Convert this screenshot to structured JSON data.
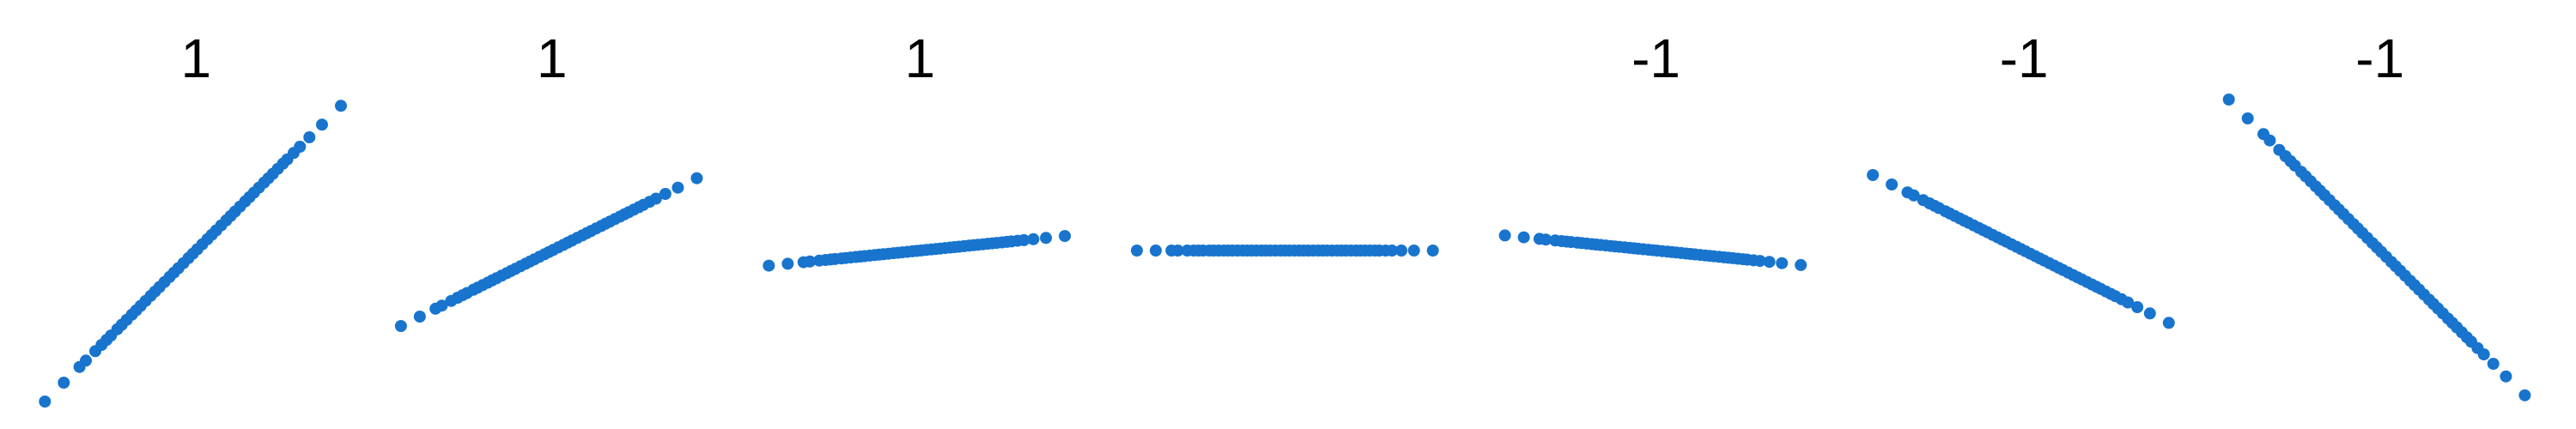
{
  "chart_data": {
    "type": "scatter",
    "title": "",
    "xlabel": "",
    "ylabel": "",
    "grid": false,
    "axes_visible": false,
    "legend": "none",
    "point_color": "#1874CD",
    "panels": [
      {
        "title": "1",
        "slope": 1.0
      },
      {
        "title": "1",
        "slope": 0.5
      },
      {
        "title": "1",
        "slope": 0.1
      },
      {
        "title": "",
        "slope": 0.0
      },
      {
        "title": "-1",
        "slope": -0.1
      },
      {
        "title": "-1",
        "slope": -0.5
      },
      {
        "title": "-1",
        "slope": -1.0
      }
    ],
    "x": [
      -2.4,
      -2.1,
      -1.85,
      -1.75,
      -1.6,
      -1.5,
      -1.42,
      -1.35,
      -1.25,
      -1.18,
      -1.1,
      -1.02,
      -0.95,
      -0.88,
      -0.8,
      -0.72,
      -0.65,
      -0.58,
      -0.5,
      -0.42,
      -0.35,
      -0.28,
      -0.2,
      -0.12,
      -0.05,
      0.02,
      0.1,
      0.18,
      0.25,
      0.32,
      0.4,
      0.48,
      0.55,
      0.62,
      0.7,
      0.78,
      0.85,
      0.92,
      1.0,
      1.08,
      1.15,
      1.22,
      1.3,
      1.38,
      1.45,
      1.55,
      1.65,
      1.8,
      2.0,
      2.3
    ]
  }
}
